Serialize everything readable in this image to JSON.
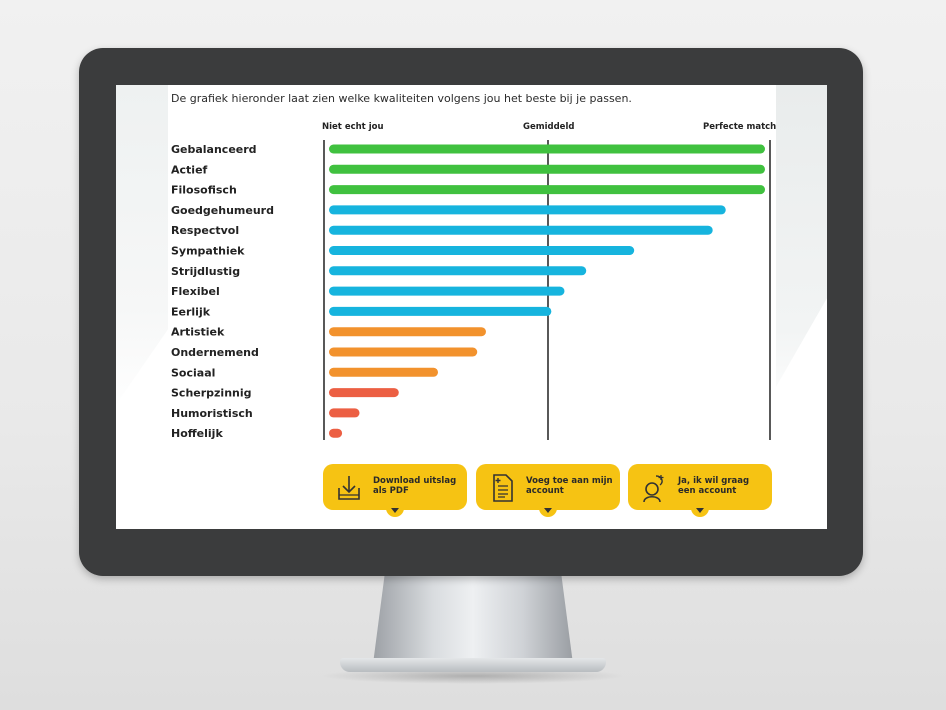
{
  "intro_text": "De grafiek hieronder laat zien welke kwaliteiten volgens jou het beste bij je passen.",
  "chart_data": {
    "type": "bar",
    "orientation": "horizontal",
    "axis_labels": [
      "Niet echt jou",
      "Gemiddeld",
      "Perfecte match"
    ],
    "xlim": [
      0,
      100
    ],
    "categories": [
      "Gebalanceerd",
      "Actief",
      "Filosofisch",
      "Goedgehumeurd",
      "Respectvol",
      "Sympathiek",
      "Strijdlustig",
      "Flexibel",
      "Eerlijk",
      "Artistiek",
      "Ondernemend",
      "Sociaal",
      "Scherpzinnig",
      "Humoristisch",
      "Hoffelijk"
    ],
    "values": [
      100,
      100,
      100,
      91,
      88,
      70,
      59,
      54,
      51,
      36,
      34,
      25,
      16,
      7,
      3
    ],
    "colors": [
      "#40c13f",
      "#40c13f",
      "#40c13f",
      "#16b4de",
      "#16b4de",
      "#16b4de",
      "#16b4de",
      "#16b4de",
      "#16b4de",
      "#f2922d",
      "#f2922d",
      "#f2922d",
      "#ec5f43",
      "#ec5f43",
      "#ec5f43"
    ],
    "grid": "three vertical reference lines"
  },
  "buttons": [
    {
      "label": "Download uitslag als PDF",
      "icon": "download-icon"
    },
    {
      "label": "Voeg toe aan mijn account",
      "icon": "document-add-icon"
    },
    {
      "label": "Ja, ik wil graag een account",
      "icon": "account-icon"
    }
  ]
}
